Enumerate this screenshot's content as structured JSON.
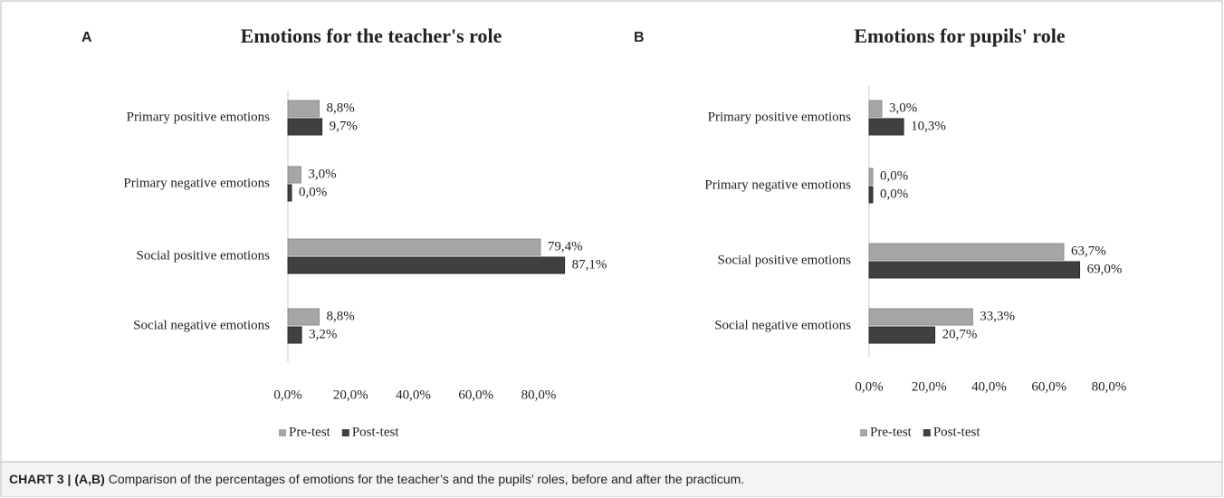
{
  "chart_data": [
    {
      "type": "bar",
      "panel_label": "A",
      "title": "Emotions for the teacher's role",
      "categories": [
        "Primary positive emotions",
        "Primary negative emotions",
        "Social positive emotions",
        "Social negative emotions"
      ],
      "series": [
        {
          "name": "Pre-test",
          "color": "#a6a6a6",
          "values": [
            8.8,
            3.0,
            79.4,
            8.8
          ],
          "value_labels": [
            "8,8%",
            "3,0%",
            "79,4%",
            "8,8%"
          ]
        },
        {
          "name": "Post-test",
          "color": "#404040",
          "values": [
            9.7,
            0.0,
            87.1,
            3.2
          ],
          "value_labels": [
            "9,7%",
            "0,0%",
            "87,1%",
            "3,2%"
          ]
        }
      ],
      "xlim": [
        0,
        100
      ],
      "xticks": [
        {
          "value": 0,
          "label": "0,0%"
        },
        {
          "value": 20,
          "label": "20,0%"
        },
        {
          "value": 40,
          "label": "40,0%"
        },
        {
          "value": 60,
          "label": "60,0%"
        },
        {
          "value": 80,
          "label": "80,0%"
        }
      ],
      "legend": "bottom"
    },
    {
      "type": "bar",
      "panel_label": "B",
      "title": "Emotions for pupils' role",
      "categories": [
        "Primary positive emotions",
        "Primary negative emotions",
        "Social positive emotions",
        "Social negative emotions"
      ],
      "series": [
        {
          "name": "Pre-test",
          "color": "#a6a6a6",
          "values": [
            3.0,
            0.0,
            63.7,
            33.3
          ],
          "value_labels": [
            "3,0%",
            "0,0%",
            "63,7%",
            "33,3%"
          ]
        },
        {
          "name": "Post-test",
          "color": "#404040",
          "values": [
            10.3,
            0.0,
            69.0,
            20.7
          ],
          "value_labels": [
            "10,3%",
            "0,0%",
            "69,0%",
            "20,7%"
          ]
        }
      ],
      "xlim": [
        0,
        100
      ],
      "xticks": [
        {
          "value": 0,
          "label": "0,0%"
        },
        {
          "value": 20,
          "label": "20,0%"
        },
        {
          "value": 40,
          "label": "40,0%"
        },
        {
          "value": 60,
          "label": "60,0%"
        },
        {
          "value": 80,
          "label": "80,0%"
        }
      ],
      "legend": "bottom"
    }
  ],
  "caption": {
    "label": "CHART 3 | (A,B)",
    "text": " Comparison of the percentages of emotions for the teacher’s and the pupils’ roles, before and after the practicum."
  }
}
